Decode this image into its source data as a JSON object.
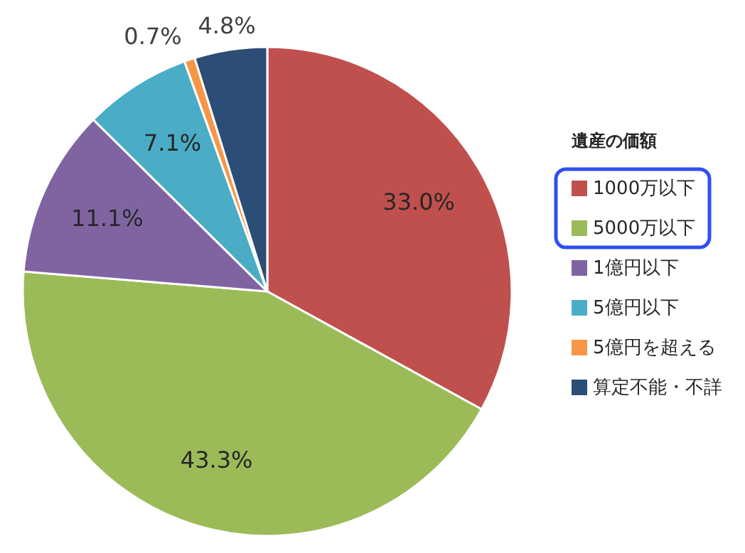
{
  "chart_data": {
    "type": "pie",
    "legend_title": "遺産の価額",
    "legend": "right",
    "categories": [
      "1000万以下",
      "5000万以下",
      "1億円以下",
      "5億円以下",
      "5億円を超える",
      "算定不能・不詳"
    ],
    "values": [
      33.0,
      43.3,
      11.1,
      7.1,
      0.7,
      4.8
    ],
    "colors": [
      "#c0504d",
      "#9bbb59",
      "#8064a2",
      "#4bacc6",
      "#f79646",
      "#2c4d75"
    ],
    "value_labels": [
      "33.0%",
      "43.3%",
      "11.1%",
      "7.1%",
      "0.7%",
      "4.8%"
    ]
  }
}
